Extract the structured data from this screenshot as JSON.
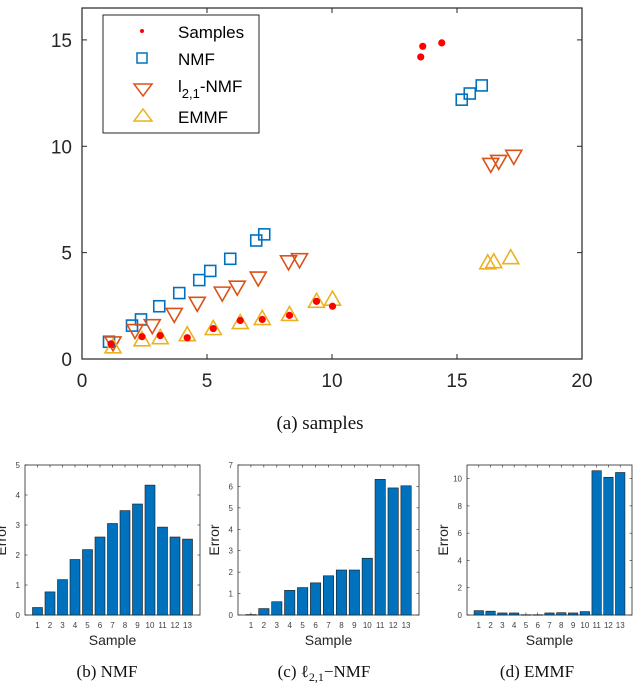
{
  "chart_data": [
    {
      "id": "a",
      "type": "scatter",
      "caption": "(a)  samples",
      "xlim": [
        0,
        20
      ],
      "ylim": [
        0,
        16.5
      ],
      "xticks": [
        0,
        5,
        10,
        15,
        20
      ],
      "yticks": [
        0,
        5,
        10,
        15
      ],
      "grid": false,
      "legend_position": "top-left",
      "series": [
        {
          "name": "Samples",
          "marker": "dot",
          "color": "#ff0000",
          "x": [
            1.16,
            2.4,
            3.13,
            4.21,
            5.25,
            6.33,
            7.21,
            8.3,
            9.38,
            10.02,
            13.55,
            13.63,
            14.39
          ],
          "y": [
            0.71,
            1.05,
            1.1,
            1.0,
            1.43,
            1.81,
            1.86,
            2.05,
            2.71,
            2.48,
            14.2,
            14.7,
            14.86
          ]
        },
        {
          "name": "NMF",
          "marker": "square",
          "color": "#0072bd",
          "x": [
            1.08,
            2.0,
            2.36,
            3.09,
            3.89,
            4.69,
            5.13,
            5.93,
            6.97,
            7.29,
            15.19,
            15.51,
            15.99
          ],
          "y": [
            0.81,
            1.57,
            1.86,
            2.48,
            3.1,
            3.71,
            4.14,
            4.71,
            5.57,
            5.86,
            12.19,
            12.48,
            12.86
          ]
        },
        {
          "name": "l2,1-NMF",
          "legend_main": "l",
          "legend_sub": "2,1",
          "legend_rest": "-NMF",
          "marker": "triangle-down",
          "color": "#d95319",
          "x": [
            1.24,
            2.12,
            2.81,
            3.69,
            4.61,
            5.61,
            6.21,
            7.05,
            8.26,
            8.7,
            16.35,
            16.67,
            17.27
          ],
          "y": [
            0.71,
            1.29,
            1.52,
            2.05,
            2.57,
            3.05,
            3.33,
            3.76,
            4.52,
            4.62,
            9.1,
            9.24,
            9.48
          ]
        },
        {
          "name": "EMMF",
          "marker": "triangle-up",
          "color": "#edb120",
          "x": [
            1.24,
            2.4,
            3.13,
            4.21,
            5.25,
            6.33,
            7.21,
            8.3,
            9.38,
            10.02,
            16.23,
            16.47,
            17.15
          ],
          "y": [
            0.62,
            0.95,
            1.05,
            1.19,
            1.48,
            1.76,
            1.95,
            2.14,
            2.76,
            2.86,
            4.57,
            4.62,
            4.81
          ]
        }
      ]
    },
    {
      "id": "b",
      "type": "bar",
      "caption": "(b)  NMF",
      "xlabel": "Sample",
      "ylabel": "Error",
      "categories": [
        "1",
        "2",
        "3",
        "4",
        "5",
        "6",
        "7",
        "8",
        "9",
        "10",
        "11",
        "12",
        "13"
      ],
      "values": [
        0.25,
        0.77,
        1.18,
        1.85,
        2.18,
        2.6,
        3.05,
        3.48,
        3.7,
        4.33,
        2.93,
        2.6,
        2.53
      ],
      "ylim": [
        0,
        5
      ],
      "yticks": [
        0,
        1,
        2,
        3,
        4,
        5
      ],
      "color": "#0072bd"
    },
    {
      "id": "c",
      "type": "bar",
      "caption": "(c)  ℓ",
      "caption_sub": "2,1",
      "caption_rest": "−NMF",
      "xlabel": "Sample",
      "ylabel": "Error",
      "categories": [
        "1",
        "2",
        "3",
        "4",
        "5",
        "6",
        "7",
        "8",
        "9",
        "10",
        "11",
        "12",
        "13"
      ],
      "values": [
        0.02,
        0.3,
        0.62,
        1.15,
        1.28,
        1.5,
        1.83,
        2.1,
        2.1,
        2.65,
        6.33,
        5.93,
        6.03
      ],
      "ylim": [
        0,
        7
      ],
      "yticks": [
        0,
        1,
        2,
        3,
        4,
        5,
        6,
        7
      ],
      "color": "#0072bd"
    },
    {
      "id": "d",
      "type": "bar",
      "caption": "(d)  EMMF",
      "xlabel": "Sample",
      "ylabel": "Error",
      "categories": [
        "1",
        "2",
        "3",
        "4",
        "5",
        "6",
        "7",
        "8",
        "9",
        "10",
        "11",
        "12",
        "13"
      ],
      "values": [
        0.32,
        0.28,
        0.15,
        0.15,
        0.02,
        0.02,
        0.15,
        0.17,
        0.15,
        0.25,
        10.58,
        10.1,
        10.45
      ],
      "ylim": [
        0,
        11
      ],
      "yticks": [
        0,
        2,
        4,
        6,
        8,
        10
      ],
      "color": "#0072bd"
    }
  ]
}
